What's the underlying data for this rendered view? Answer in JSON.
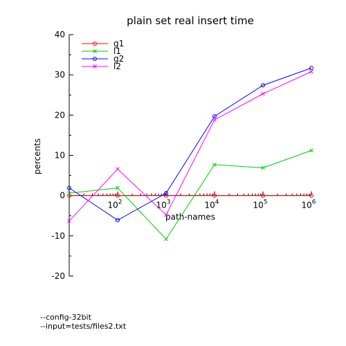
{
  "chart_data": {
    "type": "line",
    "title": "plain set real insert time",
    "xlabel": "path-names",
    "ylabel": "percents",
    "x_scale": "log10",
    "x": [
      10,
      100,
      1000,
      10000,
      100000,
      1000000
    ],
    "xticks": [
      {
        "base": "10",
        "exp": "2",
        "value": 100
      },
      {
        "base": "10",
        "exp": "3",
        "value": 1000
      },
      {
        "base": "10",
        "exp": "4",
        "value": 10000
      },
      {
        "base": "10",
        "exp": "5",
        "value": 100000
      },
      {
        "base": "10",
        "exp": "6",
        "value": 1000000
      }
    ],
    "ylim": [
      -20,
      40
    ],
    "yticks": [
      "-20",
      "-10",
      "0",
      "10",
      "20",
      "30",
      "40"
    ],
    "grid": false,
    "legend_position": "top-left",
    "series": [
      {
        "name": "g1",
        "color": "#ff0000",
        "marker": "circle",
        "values": [
          0,
          0,
          0,
          0,
          0,
          0
        ]
      },
      {
        "name": "l1",
        "color": "#00cc00",
        "marker": "cross",
        "values": [
          0.6,
          1.9,
          -10.8,
          7.7,
          6.9,
          11.2
        ]
      },
      {
        "name": "g2",
        "color": "#0000ff",
        "marker": "circle",
        "values": [
          1.9,
          -6.1,
          0.6,
          19.7,
          27.4,
          31.7
        ]
      },
      {
        "name": "l2",
        "color": "#ff00ff",
        "marker": "cross",
        "values": [
          -6.3,
          6.6,
          -4.8,
          18.8,
          25.3,
          30.8
        ]
      }
    ]
  },
  "footnotes": {
    "config": "--config-32bit",
    "input": "--input=tests/files2.txt"
  }
}
